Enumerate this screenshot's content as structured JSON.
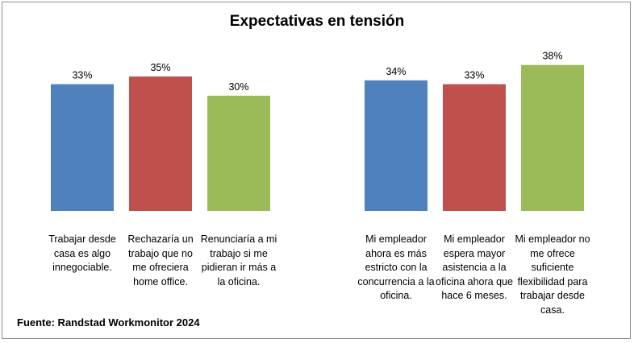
{
  "chart_data": {
    "type": "bar",
    "title": "Expectativas en tensión",
    "xlabel": "",
    "ylabel": "",
    "ylim": [
      0,
      40
    ],
    "value_suffix": "%",
    "groups": [
      {
        "name": "group-1",
        "bars": [
          {
            "category": "Trabajar desde casa es algo innegociable.",
            "value": 33,
            "color": "#4f81bd"
          },
          {
            "category": "Rechazaría un trabajo que no me ofreciera home office.",
            "value": 35,
            "color": "#c0504d"
          },
          {
            "category": "Renunciaría a mi trabajo si me pidieran ir más a la oficina.",
            "value": 30,
            "color": "#9bbb59"
          }
        ]
      },
      {
        "name": "group-2",
        "bars": [
          {
            "category": "Mi empleador ahora es más estricto con la concurrencia a la oficina.",
            "value": 34,
            "color": "#4f81bd"
          },
          {
            "category": "Mi empleador espera mayor asistencia a la oficina ahora que hace 6 meses.",
            "value": 33,
            "color": "#c0504d"
          },
          {
            "category": "Mi empleador no me ofrece suficiente flexibilidad para trabajar desde casa.",
            "value": 38,
            "color": "#9bbb59"
          }
        ]
      }
    ]
  },
  "source": "Fuente: Randstad Workmonitor 2024"
}
